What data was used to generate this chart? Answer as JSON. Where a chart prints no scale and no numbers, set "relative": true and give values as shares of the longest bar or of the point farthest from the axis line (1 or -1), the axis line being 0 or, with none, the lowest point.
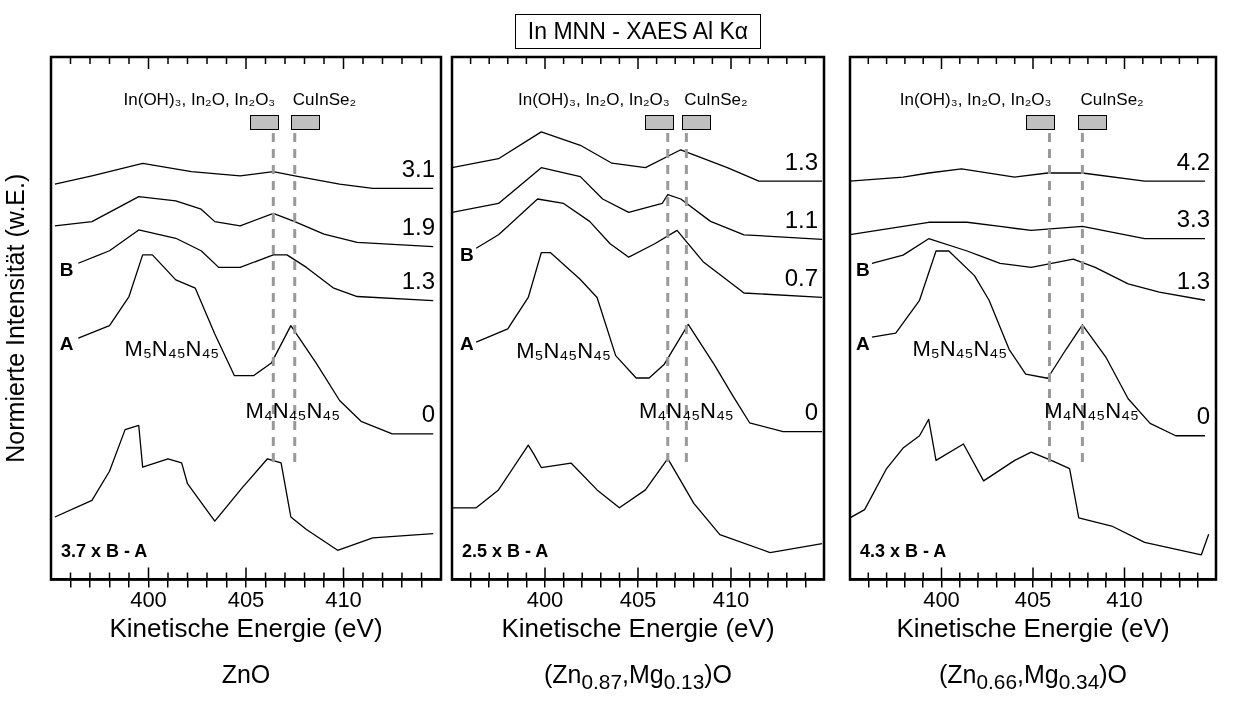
{
  "chart_data": [
    {
      "type": "line",
      "relative": true,
      "xlabel": "Kinetische Energie (eV)",
      "ylabel": "Normierte Intensität (w.E.)",
      "xlim": [
        395,
        415
      ],
      "xticks": [
        {
          "value": 396,
          "label": null
        },
        {
          "value": 397,
          "label": null
        },
        {
          "value": 398,
          "label": null
        },
        {
          "value": 399,
          "label": null
        },
        400,
        {
          "value": 401,
          "label": null
        },
        {
          "value": 402,
          "label": null
        },
        {
          "value": 403,
          "label": null
        },
        {
          "value": 404,
          "label": null
        },
        405,
        {
          "value": 406,
          "label": null
        },
        {
          "value": 407,
          "label": null
        },
        {
          "value": 408,
          "label": null
        },
        {
          "value": 409,
          "label": null
        },
        410,
        {
          "value": 411,
          "label": null
        },
        {
          "value": 412,
          "label": null
        },
        {
          "value": 413,
          "label": null
        },
        {
          "value": 414,
          "label": null
        }
      ],
      "marker": "none",
      "line_style": "solid",
      "series": [
        {
          "name": "3.1",
          "color": "#000000",
          "x": [
            395.2,
            397.1,
            399.7,
            402.2,
            404.7,
            406.4,
            407.5,
            409.8,
            411.5,
            414.6
          ],
          "values": [
            0.95,
            0.97,
            1,
            0.98,
            0.97,
            0.98,
            0.97,
            0.95,
            0.94,
            0.94
          ]
        },
        {
          "name": "1.9",
          "color": "#000000",
          "x": [
            395.2,
            397.1,
            399.5,
            401.4,
            402.7,
            403.4,
            404.7,
            406.4,
            407.5,
            409.0,
            410.7,
            414.6
          ],
          "values": [
            0.85,
            0.86,
            0.92,
            0.91,
            0.89,
            0.86,
            0.85,
            0.88,
            0.86,
            0.83,
            0.81,
            0.8
          ]
        },
        {
          "name": "1.3",
          "color": "#000000",
          "x": [
            396.4,
            398.0,
            399.5,
            401.4,
            402.7,
            403.6,
            404.7,
            406.4,
            407.1,
            408.1,
            409.5,
            410.7,
            414.6
          ],
          "values": [
            0.76,
            0.79,
            0.84,
            0.82,
            0.79,
            0.75,
            0.75,
            0.78,
            0.78,
            0.75,
            0.7,
            0.68,
            0.67
          ]
        },
        {
          "name": "0",
          "color": "#000000",
          "x": [
            396.4,
            398.0,
            399.0,
            399.7,
            400.2,
            401.4,
            402.4,
            403.4,
            404.4,
            405.4,
            406.3,
            407.3,
            408.6,
            409.8,
            410.9,
            412.5,
            414.6
          ],
          "values": [
            0.58,
            0.61,
            0.68,
            0.78,
            0.78,
            0.72,
            0.7,
            0.59,
            0.49,
            0.49,
            0.52,
            0.61,
            0.52,
            0.43,
            0.38,
            0.35,
            0.35
          ]
        },
        {
          "name": "3.7 x B - A",
          "color": "#000000",
          "x": [
            395.2,
            397.1,
            398.0,
            398.8,
            399.5,
            399.7,
            401.0,
            401.7,
            402.0,
            403.4,
            404.8,
            406.1,
            406.8,
            407.3,
            408.1,
            409.7,
            411.5,
            414.6
          ],
          "values": [
            0.15,
            0.19,
            0.26,
            0.36,
            0.37,
            0.27,
            0.29,
            0.28,
            0.23,
            0.14,
            0.22,
            0.29,
            0.28,
            0.15,
            0.12,
            0.07,
            0.1,
            0.11
          ]
        }
      ],
      "ref_lines": [
        {
          "axis": "x",
          "value": 406.4,
          "label": "In(OH)₃, In₂O, In₂O₃",
          "color": "#999999",
          "line_style": "dashed"
        },
        {
          "axis": "x",
          "value": 407.5,
          "label": "CuInSe₂",
          "color": "#999999",
          "line_style": "dashed"
        }
      ],
      "annotations": [
        "M₅N₄₅N₄₅",
        "M₄N₄₅N₄₅",
        "B",
        "A",
        "ZnO"
      ]
    },
    {
      "type": "line",
      "relative": true,
      "title": "In MNN - XAES Al Kα",
      "xlabel": "Kinetische Energie (eV)",
      "xlim": [
        395,
        415
      ],
      "xticks": [
        {
          "value": 396,
          "label": null
        },
        {
          "value": 397,
          "label": null
        },
        {
          "value": 398,
          "label": null
        },
        {
          "value": 399,
          "label": null
        },
        400,
        {
          "value": 401,
          "label": null
        },
        {
          "value": 402,
          "label": null
        },
        {
          "value": 403,
          "label": null
        },
        {
          "value": 404,
          "label": null
        },
        405,
        {
          "value": 406,
          "label": null
        },
        {
          "value": 407,
          "label": null
        },
        {
          "value": 408,
          "label": null
        },
        {
          "value": 409,
          "label": null
        },
        410,
        {
          "value": 411,
          "label": null
        },
        {
          "value": 412,
          "label": null
        },
        {
          "value": 413,
          "label": null
        },
        {
          "value": 414,
          "label": null
        }
      ],
      "marker": "none",
      "line_style": "solid",
      "series": [
        {
          "name": "1.3",
          "color": "#000000",
          "x": [
            395.0,
            397.5,
            399.8,
            401.9,
            403.6,
            405.4,
            407.3,
            409.8,
            411.5,
            414.9
          ],
          "values": [
            0.92,
            0.94,
            1,
            0.97,
            0.93,
            0.92,
            0.96,
            0.92,
            0.89,
            0.89
          ]
        },
        {
          "name": "1.1",
          "color": "#000000",
          "x": [
            395.0,
            397.5,
            399.8,
            401.9,
            403.1,
            404.5,
            406.3,
            406.6,
            407.3,
            408.9,
            410.7,
            414.9
          ],
          "values": [
            0.82,
            0.84,
            0.92,
            0.9,
            0.85,
            0.82,
            0.84,
            0.86,
            0.85,
            0.8,
            0.77,
            0.76
          ]
        },
        {
          "name": "0.7",
          "color": "#000000",
          "x": [
            396.3,
            397.5,
            399.6,
            401.0,
            402.4,
            403.5,
            404.5,
            405.9,
            407.1,
            408.5,
            410.7,
            414.9
          ],
          "values": [
            0.74,
            0.77,
            0.85,
            0.84,
            0.8,
            0.75,
            0.72,
            0.75,
            0.78,
            0.71,
            0.64,
            0.63
          ]
        },
        {
          "name": "0",
          "color": "#000000",
          "x": [
            396.3,
            398.0,
            399.1,
            399.8,
            400.3,
            401.9,
            402.8,
            403.8,
            404.9,
            405.6,
            406.4,
            407.7,
            409.1,
            410.1,
            411.0,
            412.8,
            414.9
          ],
          "values": [
            0.53,
            0.56,
            0.63,
            0.73,
            0.73,
            0.67,
            0.63,
            0.5,
            0.45,
            0.45,
            0.48,
            0.57,
            0.48,
            0.41,
            0.35,
            0.33,
            0.33
          ]
        },
        {
          "name": "2.5 x B - A",
          "color": "#000000",
          "x": [
            395.0,
            396.3,
            397.5,
            399.1,
            399.4,
            399.8,
            401.4,
            402.8,
            404.0,
            405.4,
            406.6,
            407.3,
            408.0,
            409.4,
            412.1,
            414.9
          ],
          "values": [
            0.16,
            0.16,
            0.2,
            0.3,
            0.28,
            0.25,
            0.26,
            0.2,
            0.16,
            0.2,
            0.27,
            0.22,
            0.17,
            0.1,
            0.06,
            0.08
          ]
        }
      ],
      "ref_lines": [
        {
          "axis": "x",
          "value": 406.6,
          "label": "In(OH)₃, In₂O, In₂O₃",
          "color": "#999999",
          "line_style": "dashed"
        },
        {
          "axis": "x",
          "value": 407.6,
          "label": "CuInSe₂",
          "color": "#999999",
          "line_style": "dashed"
        }
      ],
      "annotations": [
        "M₅N₄₅N₄₅",
        "M₄N₄₅N₄₅",
        "B",
        "A",
        "(Zn$_{0.87}$,Mg$_{0.13}$)O"
      ]
    },
    {
      "type": "line",
      "relative": true,
      "xlabel": "Kinetische Energie (eV)",
      "xlim": [
        395,
        415
      ],
      "xticks": [
        {
          "value": 396,
          "label": null
        },
        {
          "value": 397,
          "label": null
        },
        {
          "value": 398,
          "label": null
        },
        {
          "value": 399,
          "label": null
        },
        400,
        {
          "value": 401,
          "label": null
        },
        {
          "value": 402,
          "label": null
        },
        {
          "value": 403,
          "label": null
        },
        {
          "value": 404,
          "label": null
        },
        405,
        {
          "value": 406,
          "label": null
        },
        {
          "value": 407,
          "label": null
        },
        {
          "value": 408,
          "label": null
        },
        {
          "value": 409,
          "label": null
        },
        410,
        {
          "value": 411,
          "label": null
        },
        {
          "value": 412,
          "label": null
        },
        {
          "value": 413,
          "label": null
        },
        {
          "value": 414,
          "label": null
        }
      ],
      "marker": "none",
      "line_style": "solid",
      "series": [
        {
          "name": "4.2",
          "color": "#000000",
          "x": [
            395.0,
            397.9,
            399.3,
            401.1,
            404.0,
            405.8,
            407.7,
            411.1,
            414.4
          ],
          "values": [
            0.97,
            0.98,
            0.99,
            1,
            0.98,
            0.99,
            0.99,
            0.97,
            0.97
          ]
        },
        {
          "name": "3.3",
          "color": "#000000",
          "x": [
            395.0,
            397.9,
            399.3,
            401.4,
            403.2,
            404.9,
            407.7,
            411.1,
            414.4
          ],
          "values": [
            0.84,
            0.86,
            0.87,
            0.87,
            0.86,
            0.85,
            0.86,
            0.83,
            0.83
          ]
        },
        {
          "name": "1.3",
          "color": "#000000",
          "x": [
            396.2,
            397.9,
            399.3,
            401.4,
            403.2,
            404.9,
            407.2,
            408.4,
            410.2,
            411.9,
            414.4
          ],
          "values": [
            0.77,
            0.79,
            0.83,
            0.8,
            0.77,
            0.76,
            0.78,
            0.76,
            0.72,
            0.7,
            0.68
          ]
        },
        {
          "name": "0",
          "color": "#000000",
          "x": [
            396.2,
            397.5,
            398.8,
            399.7,
            400.4,
            401.8,
            402.6,
            403.7,
            404.6,
            405.8,
            406.8,
            407.7,
            409.0,
            410.2,
            411.4,
            412.8,
            414.4
          ],
          "values": [
            0.59,
            0.6,
            0.68,
            0.8,
            0.8,
            0.74,
            0.68,
            0.56,
            0.5,
            0.49,
            0.56,
            0.62,
            0.54,
            0.44,
            0.38,
            0.35,
            0.35
          ]
        },
        {
          "name": "4.3 x B - A",
          "color": "#000000",
          "x": [
            395.0,
            395.8,
            397.0,
            397.9,
            398.8,
            399.3,
            399.7,
            401.2,
            402.3,
            404.0,
            404.9,
            406.0,
            407.0,
            407.5,
            409.3,
            411.1,
            414.2,
            414.6
          ],
          "values": [
            0.15,
            0.17,
            0.27,
            0.32,
            0.35,
            0.39,
            0.29,
            0.33,
            0.24,
            0.29,
            0.31,
            0.29,
            0.27,
            0.15,
            0.13,
            0.09,
            0.06,
            0.11
          ]
        }
      ],
      "ref_lines": [
        {
          "axis": "x",
          "value": 405.9,
          "label": "In(OH)₃, In₂O, In₂O₃",
          "color": "#999999",
          "line_style": "dashed"
        },
        {
          "axis": "x",
          "value": 407.7,
          "label": "CuInSe₂",
          "color": "#999999",
          "line_style": "dashed"
        }
      ],
      "annotations": [
        "M₅N₄₅N₄₅",
        "M₄N₄₅N₄₅",
        "B",
        "A",
        "(Zn$_{0.66}$,Mg$_{0.34}$)O"
      ]
    }
  ]
}
